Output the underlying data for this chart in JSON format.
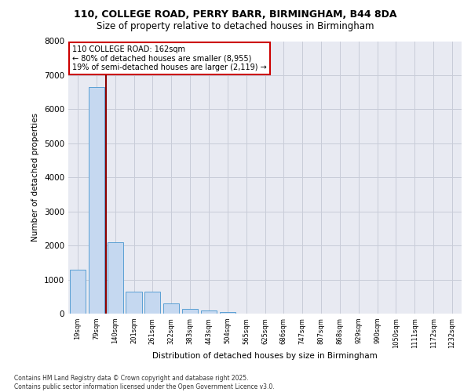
{
  "title_line1": "110, COLLEGE ROAD, PERRY BARR, BIRMINGHAM, B44 8DA",
  "title_line2": "Size of property relative to detached houses in Birmingham",
  "xlabel": "Distribution of detached houses by size in Birmingham",
  "ylabel": "Number of detached properties",
  "footer": "Contains HM Land Registry data © Crown copyright and database right 2025.\nContains public sector information licensed under the Open Government Licence v3.0.",
  "categories": [
    "19sqm",
    "79sqm",
    "140sqm",
    "201sqm",
    "261sqm",
    "322sqm",
    "383sqm",
    "443sqm",
    "504sqm",
    "565sqm",
    "625sqm",
    "686sqm",
    "747sqm",
    "807sqm",
    "868sqm",
    "929sqm",
    "990sqm",
    "1050sqm",
    "1111sqm",
    "1172sqm",
    "1232sqm"
  ],
  "values": [
    1300,
    6650,
    2100,
    650,
    650,
    290,
    130,
    95,
    50,
    0,
    0,
    0,
    0,
    0,
    0,
    0,
    0,
    0,
    0,
    0,
    0
  ],
  "bar_color": "#c5d8f0",
  "bar_edge_color": "#5a9fd4",
  "grid_color": "#c8ccd8",
  "background_color": "#e8eaf2",
  "annotation_text": "110 COLLEGE ROAD: 162sqm\n← 80% of detached houses are smaller (8,955)\n19% of semi-detached houses are larger (2,119) →",
  "vline_color": "#8b0000",
  "annotation_box_color": "white",
  "annotation_box_edge": "#cc0000",
  "ylim": [
    0,
    8000
  ],
  "yticks": [
    0,
    1000,
    2000,
    3000,
    4000,
    5000,
    6000,
    7000,
    8000
  ]
}
